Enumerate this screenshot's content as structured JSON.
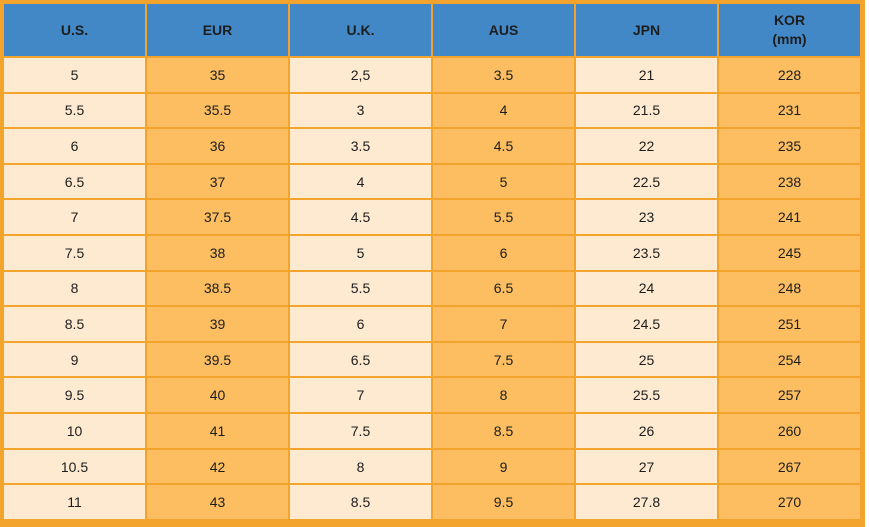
{
  "chart_data": {
    "type": "table",
    "columns": [
      {
        "key": "us",
        "label": "U.S.",
        "sublabel": ""
      },
      {
        "key": "eur",
        "label": "EUR",
        "sublabel": ""
      },
      {
        "key": "uk",
        "label": "U.K.",
        "sublabel": ""
      },
      {
        "key": "aus",
        "label": "AUS",
        "sublabel": ""
      },
      {
        "key": "jpn",
        "label": "JPN",
        "sublabel": ""
      },
      {
        "key": "kor",
        "label": "KOR",
        "sublabel": "(mm)"
      }
    ],
    "rows": [
      [
        "5",
        "35",
        "2,5",
        "3.5",
        "21",
        "228"
      ],
      [
        "5.5",
        "35.5",
        "3",
        "4",
        "21.5",
        "231"
      ],
      [
        "6",
        "36",
        "3.5",
        "4.5",
        "22",
        "235"
      ],
      [
        "6.5",
        "37",
        "4",
        "5",
        "22.5",
        "238"
      ],
      [
        "7",
        "37.5",
        "4.5",
        "5.5",
        "23",
        "241"
      ],
      [
        "7.5",
        "38",
        "5",
        "6",
        "23.5",
        "245"
      ],
      [
        "8",
        "38.5",
        "5.5",
        "6.5",
        "24",
        "248"
      ],
      [
        "8.5",
        "39",
        "6",
        "7",
        "24.5",
        "251"
      ],
      [
        "9",
        "39.5",
        "6.5",
        "7.5",
        "25",
        "254"
      ],
      [
        "9.5",
        "40",
        "7",
        "8",
        "25.5",
        "257"
      ],
      [
        "10",
        "41",
        "7.5",
        "8.5",
        "26",
        "260"
      ],
      [
        "10.5",
        "42",
        "8",
        "9",
        "27",
        "267"
      ],
      [
        "11",
        "43",
        "8.5",
        "9.5",
        "27.8",
        "270"
      ]
    ],
    "layout": {
      "grid": true,
      "column_style_pattern": [
        "light",
        "orange",
        "light",
        "orange",
        "light",
        "orange"
      ]
    }
  },
  "colors": {
    "header_bg": "#4288C7",
    "border": "#F3A42D",
    "cell_light": "#FDEAD1",
    "cell_orange": "#FCBE61",
    "text": "#1D1D1D"
  }
}
